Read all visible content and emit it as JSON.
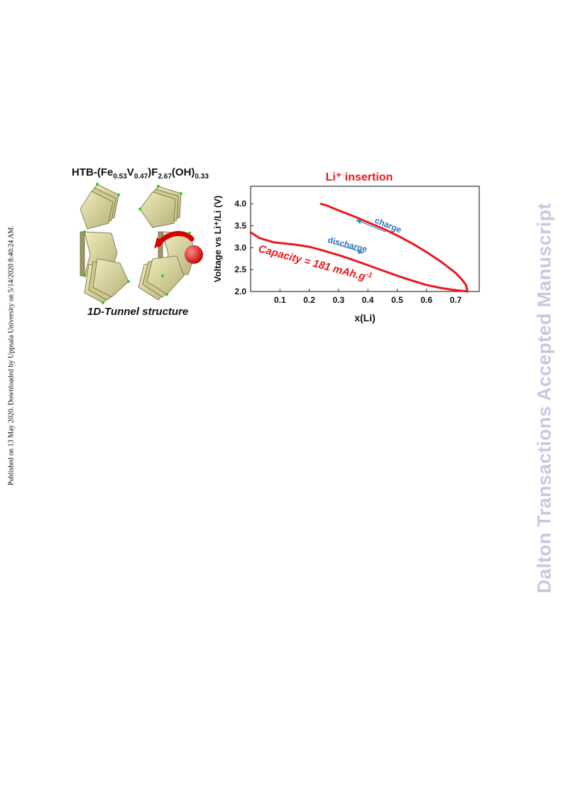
{
  "side_note": "Published on 13 May 2020. Downloaded by Uppsala University on 5/14/2020 8:40:24 AM.",
  "watermark": "Dalton Transactions Accepted Manuscript",
  "structure": {
    "formula_prefix": "HTB-(Fe",
    "fe_sub": "0.53",
    "v_label": "V",
    "v_sub": "0.47",
    "f_label": ")F",
    "f_sub": "2.67",
    "oh_label": "(OH)",
    "oh_sub": "0.33",
    "caption": "1D-Tunnel structure"
  },
  "chart_data": {
    "type": "line",
    "title": "Li⁺ insertion",
    "xlabel": "x(Li)",
    "ylabel": "Voltage vs Li⁺/Li (V)",
    "xlim": [
      0,
      0.78
    ],
    "ylim": [
      2.0,
      4.4
    ],
    "xticks": [
      "0.1",
      "0.2",
      "0.3",
      "0.4",
      "0.5",
      "0.6",
      "0.7"
    ],
    "yticks": [
      "2.0",
      "2.5",
      "3.0",
      "3.5",
      "4.0"
    ],
    "grid": false,
    "colors": {
      "curve": "#e8191c",
      "annotation": "#2e75b6"
    },
    "series": [
      {
        "x": [
          0.0,
          0.03,
          0.08,
          0.15,
          0.2,
          0.25,
          0.3,
          0.35,
          0.4,
          0.45,
          0.5,
          0.55,
          0.6,
          0.65,
          0.7,
          0.73,
          0.74
        ],
        "y": [
          3.35,
          3.22,
          3.12,
          3.07,
          3.02,
          2.93,
          2.83,
          2.72,
          2.6,
          2.48,
          2.36,
          2.25,
          2.15,
          2.08,
          2.03,
          2.01,
          2.0
        ]
      },
      {
        "x": [
          0.74,
          0.735,
          0.72,
          0.7,
          0.65,
          0.6,
          0.55,
          0.5,
          0.45,
          0.4,
          0.35,
          0.3,
          0.26,
          0.24
        ],
        "y": [
          2.0,
          2.15,
          2.28,
          2.42,
          2.68,
          2.9,
          3.1,
          3.28,
          3.44,
          3.58,
          3.72,
          3.85,
          3.96,
          4.0
        ]
      }
    ],
    "annotations": {
      "charge": "charge",
      "discharge": "discharge",
      "capacity": "Capacity = 181 mAh.g",
      "capacity_sup": "-1"
    }
  }
}
